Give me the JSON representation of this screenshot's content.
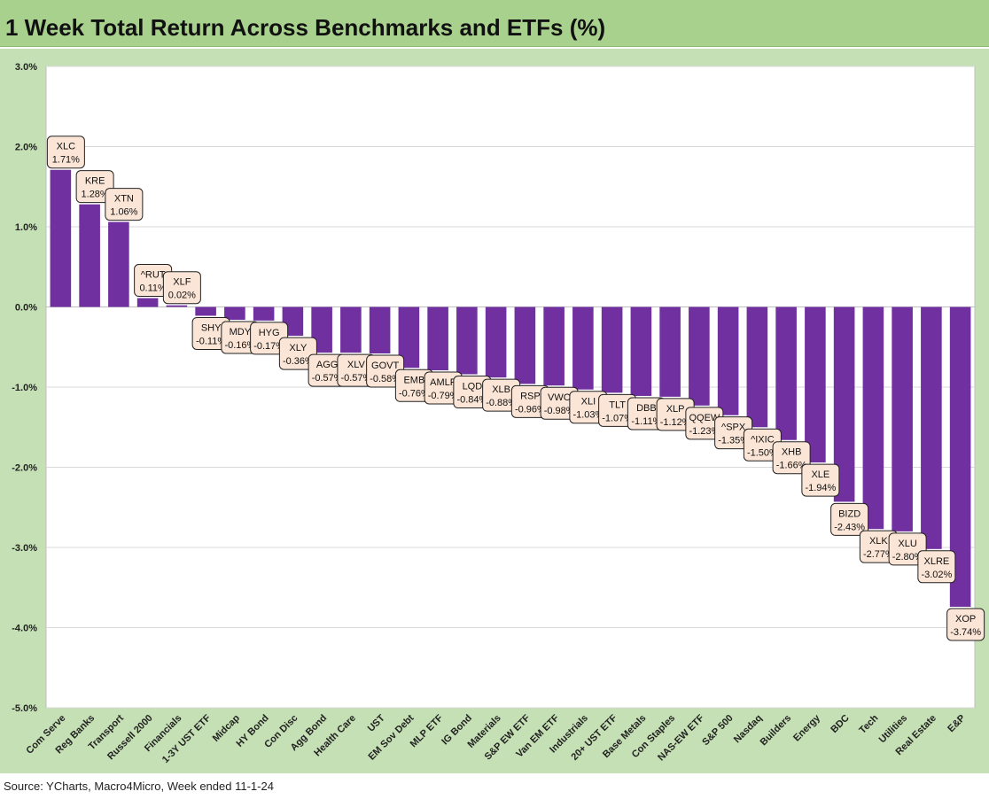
{
  "title": "1 Week Total Return Across Benchmarks and ETFs (%)",
  "source": "Source: YCharts, Macro4Micro, Week ended 11-1-24",
  "colors": {
    "bar": "#7030a0",
    "label_fill": "#fbe5d6",
    "header": "#a9d18e",
    "panel": "#c5e0b4"
  },
  "chart_data": {
    "type": "bar",
    "title": "",
    "xlabel": "",
    "ylabel": "",
    "ylim": [
      -5.0,
      3.0
    ],
    "yticks": [
      "3.0%",
      "2.0%",
      "1.0%",
      "0.0%",
      "-1.0%",
      "-2.0%",
      "-3.0%",
      "-4.0%",
      "-5.0%"
    ],
    "grid": true,
    "categories": [
      "Com Serve",
      "Reg Banks",
      "Transport",
      "Russell 2000",
      "Financials",
      "1-3Y UST ETF",
      "Midcap",
      "HY Bond",
      "Con Disc",
      "Agg Bond",
      "Health Care",
      "UST",
      "EM Sov Debt",
      "MLP ETF",
      "IG Bond",
      "Materials",
      "S&P EW ETF",
      "Van EM ETF",
      "Industrials",
      "20+ UST ETF",
      "Base Metals",
      "Con Staples",
      "NAS-EW ETF",
      "S&P 500",
      "Nasdaq",
      "Builders",
      "Energy",
      "BDC",
      "Tech",
      "Utilities",
      "Real Estate",
      "E&P"
    ],
    "tickers": [
      "XLC",
      "KRE",
      "XTN",
      "^RUT",
      "XLF",
      "SHY",
      "MDY",
      "HYG",
      "XLY",
      "AGG",
      "XLV",
      "GOVT",
      "EMB",
      "AMLP",
      "LQD",
      "XLB",
      "RSP",
      "VWO",
      "XLI",
      "TLT",
      "DBB",
      "XLP",
      "QQEW",
      "^SPX",
      "^IXIC",
      "XHB",
      "XLE",
      "BIZD",
      "XLK",
      "XLU",
      "XLRE",
      "XOP"
    ],
    "data_labels": [
      "1.71%",
      "1.28%",
      "1.06%",
      "0.11%",
      "0.02%",
      "-0.11%",
      "-0.16%",
      "-0.17%",
      "-0.36%",
      "-0.57%",
      "-0.57%",
      "-0.58%",
      "-0.76%",
      "-0.79%",
      "-0.84%",
      "-0.88%",
      "-0.96%",
      "-0.98%",
      "-1.03%",
      "-1.07%",
      "-1.11%",
      "-1.12%",
      "-1.23%",
      "-1.35%",
      "-1.50%",
      "-1.66%",
      "-1.94%",
      "-2.43%",
      "-2.77%",
      "-2.80%",
      "-3.02%",
      "-3.74%"
    ],
    "values": [
      1.71,
      1.28,
      1.06,
      0.11,
      0.02,
      -0.11,
      -0.16,
      -0.17,
      -0.36,
      -0.57,
      -0.57,
      -0.58,
      -0.76,
      -0.79,
      -0.84,
      -0.88,
      -0.96,
      -0.98,
      -1.03,
      -1.07,
      -1.11,
      -1.12,
      -1.23,
      -1.35,
      -1.5,
      -1.66,
      -1.94,
      -2.43,
      -2.77,
      -2.8,
      -3.02,
      -3.74
    ]
  }
}
